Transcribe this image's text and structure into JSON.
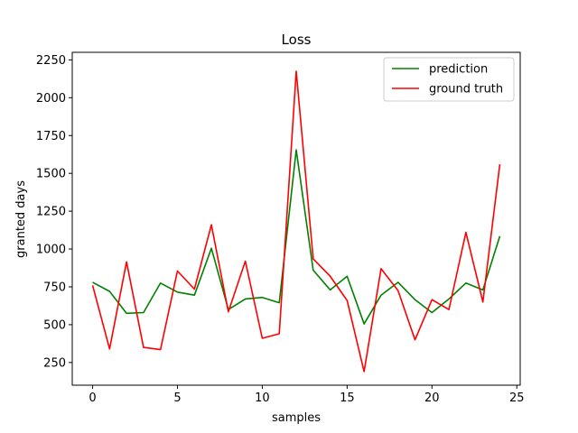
{
  "chart_data": {
    "type": "line",
    "title": "Loss",
    "xlabel": "samples",
    "ylabel": "granted days",
    "xlim": [
      -1.2,
      25.2
    ],
    "ylim": [
      100,
      2300
    ],
    "x_ticks": [
      0,
      5,
      10,
      15,
      20,
      25
    ],
    "x_tick_labels": [
      "0",
      "5",
      "10",
      "15",
      "20",
      "25"
    ],
    "y_ticks": [
      250,
      500,
      750,
      1000,
      1250,
      1500,
      1750,
      2000,
      2250
    ],
    "y_tick_labels": [
      "250",
      "500",
      "750",
      "1000",
      "1250",
      "1500",
      "1750",
      "2000",
      "2250"
    ],
    "grid": false,
    "legend_position": "top-right",
    "x": [
      0,
      1,
      2,
      3,
      4,
      5,
      6,
      7,
      8,
      9,
      10,
      11,
      12,
      13,
      14,
      15,
      16,
      17,
      18,
      19,
      20,
      21,
      22,
      23,
      24
    ],
    "series": [
      {
        "name": "prediction",
        "color": "#008000",
        "values": [
          780,
          720,
          575,
          580,
          775,
          715,
          695,
          1005,
          600,
          670,
          680,
          645,
          1655,
          860,
          730,
          820,
          505,
          695,
          780,
          665,
          580,
          670,
          775,
          730,
          1085
        ]
      },
      {
        "name": "ground truth",
        "color": "#ff0000",
        "values": [
          760,
          340,
          915,
          350,
          335,
          855,
          735,
          1160,
          585,
          920,
          410,
          440,
          2175,
          935,
          820,
          660,
          190,
          870,
          725,
          400,
          665,
          600,
          1110,
          650,
          1560
        ]
      }
    ]
  }
}
